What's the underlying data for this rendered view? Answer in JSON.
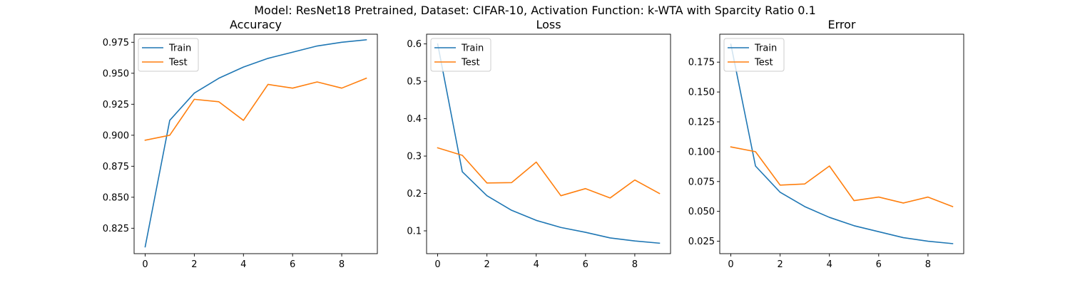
{
  "suptitle": "Model: ResNet18 Pretrained, Dataset: CIFAR-10, Activation Function: k-WTA with Sparcity Ratio 0.1",
  "colors": {
    "train": "#1f77b4",
    "test": "#ff7f0e"
  },
  "chart_data": [
    {
      "type": "line",
      "title": "Accuracy",
      "xlabel": "",
      "ylabel": "",
      "x": [
        0,
        1,
        2,
        3,
        4,
        5,
        6,
        7,
        8,
        9
      ],
      "xlim": [
        -0.45,
        9.45
      ],
      "ylim": [
        0.8045,
        0.9815
      ],
      "xticks": [
        0,
        2,
        4,
        6,
        8
      ],
      "yticks": [
        0.825,
        0.85,
        0.875,
        0.9,
        0.925,
        0.95,
        0.975
      ],
      "ytick_labels": [
        "0.825",
        "0.850",
        "0.875",
        "0.900",
        "0.925",
        "0.950",
        "0.975"
      ],
      "legend": "upper left",
      "series": [
        {
          "name": "Train",
          "values": [
            0.81,
            0.912,
            0.934,
            0.946,
            0.955,
            0.962,
            0.967,
            0.972,
            0.975,
            0.977
          ]
        },
        {
          "name": "Test",
          "values": [
            0.896,
            0.9,
            0.929,
            0.927,
            0.912,
            0.941,
            0.938,
            0.943,
            0.938,
            0.946
          ]
        }
      ]
    },
    {
      "type": "line",
      "title": "Loss",
      "xlabel": "",
      "ylabel": "",
      "x": [
        0,
        1,
        2,
        3,
        4,
        5,
        6,
        7,
        8,
        9
      ],
      "xlim": [
        -0.45,
        9.45
      ],
      "ylim": [
        0.039,
        0.626
      ],
      "xticks": [
        0,
        2,
        4,
        6,
        8
      ],
      "yticks": [
        0.1,
        0.2,
        0.3,
        0.4,
        0.5,
        0.6
      ],
      "ytick_labels": [
        "0.1",
        "0.2",
        "0.3",
        "0.4",
        "0.5",
        "0.6"
      ],
      "legend": "upper left",
      "series": [
        {
          "name": "Train",
          "values": [
            0.6,
            0.258,
            0.194,
            0.155,
            0.128,
            0.109,
            0.096,
            0.081,
            0.073,
            0.067
          ]
        },
        {
          "name": "Test",
          "values": [
            0.322,
            0.302,
            0.228,
            0.229,
            0.284,
            0.194,
            0.213,
            0.188,
            0.236,
            0.2
          ]
        }
      ]
    },
    {
      "type": "line",
      "title": "Error",
      "xlabel": "",
      "ylabel": "",
      "x": [
        0,
        1,
        2,
        3,
        4,
        5,
        6,
        7,
        8,
        9
      ],
      "xlim": [
        -0.45,
        9.45
      ],
      "ylim": [
        0.0146,
        0.1984
      ],
      "xticks": [
        0,
        2,
        4,
        6,
        8
      ],
      "yticks": [
        0.025,
        0.05,
        0.075,
        0.1,
        0.125,
        0.15,
        0.175
      ],
      "ytick_labels": [
        "0.025",
        "0.050",
        "0.075",
        "0.100",
        "0.125",
        "0.150",
        "0.175"
      ],
      "legend": "upper left",
      "series": [
        {
          "name": "Train",
          "values": [
            0.19,
            0.088,
            0.066,
            0.054,
            0.045,
            0.038,
            0.033,
            0.028,
            0.025,
            0.023
          ]
        },
        {
          "name": "Test",
          "values": [
            0.104,
            0.1,
            0.072,
            0.073,
            0.088,
            0.059,
            0.062,
            0.057,
            0.062,
            0.054
          ]
        }
      ]
    }
  ]
}
